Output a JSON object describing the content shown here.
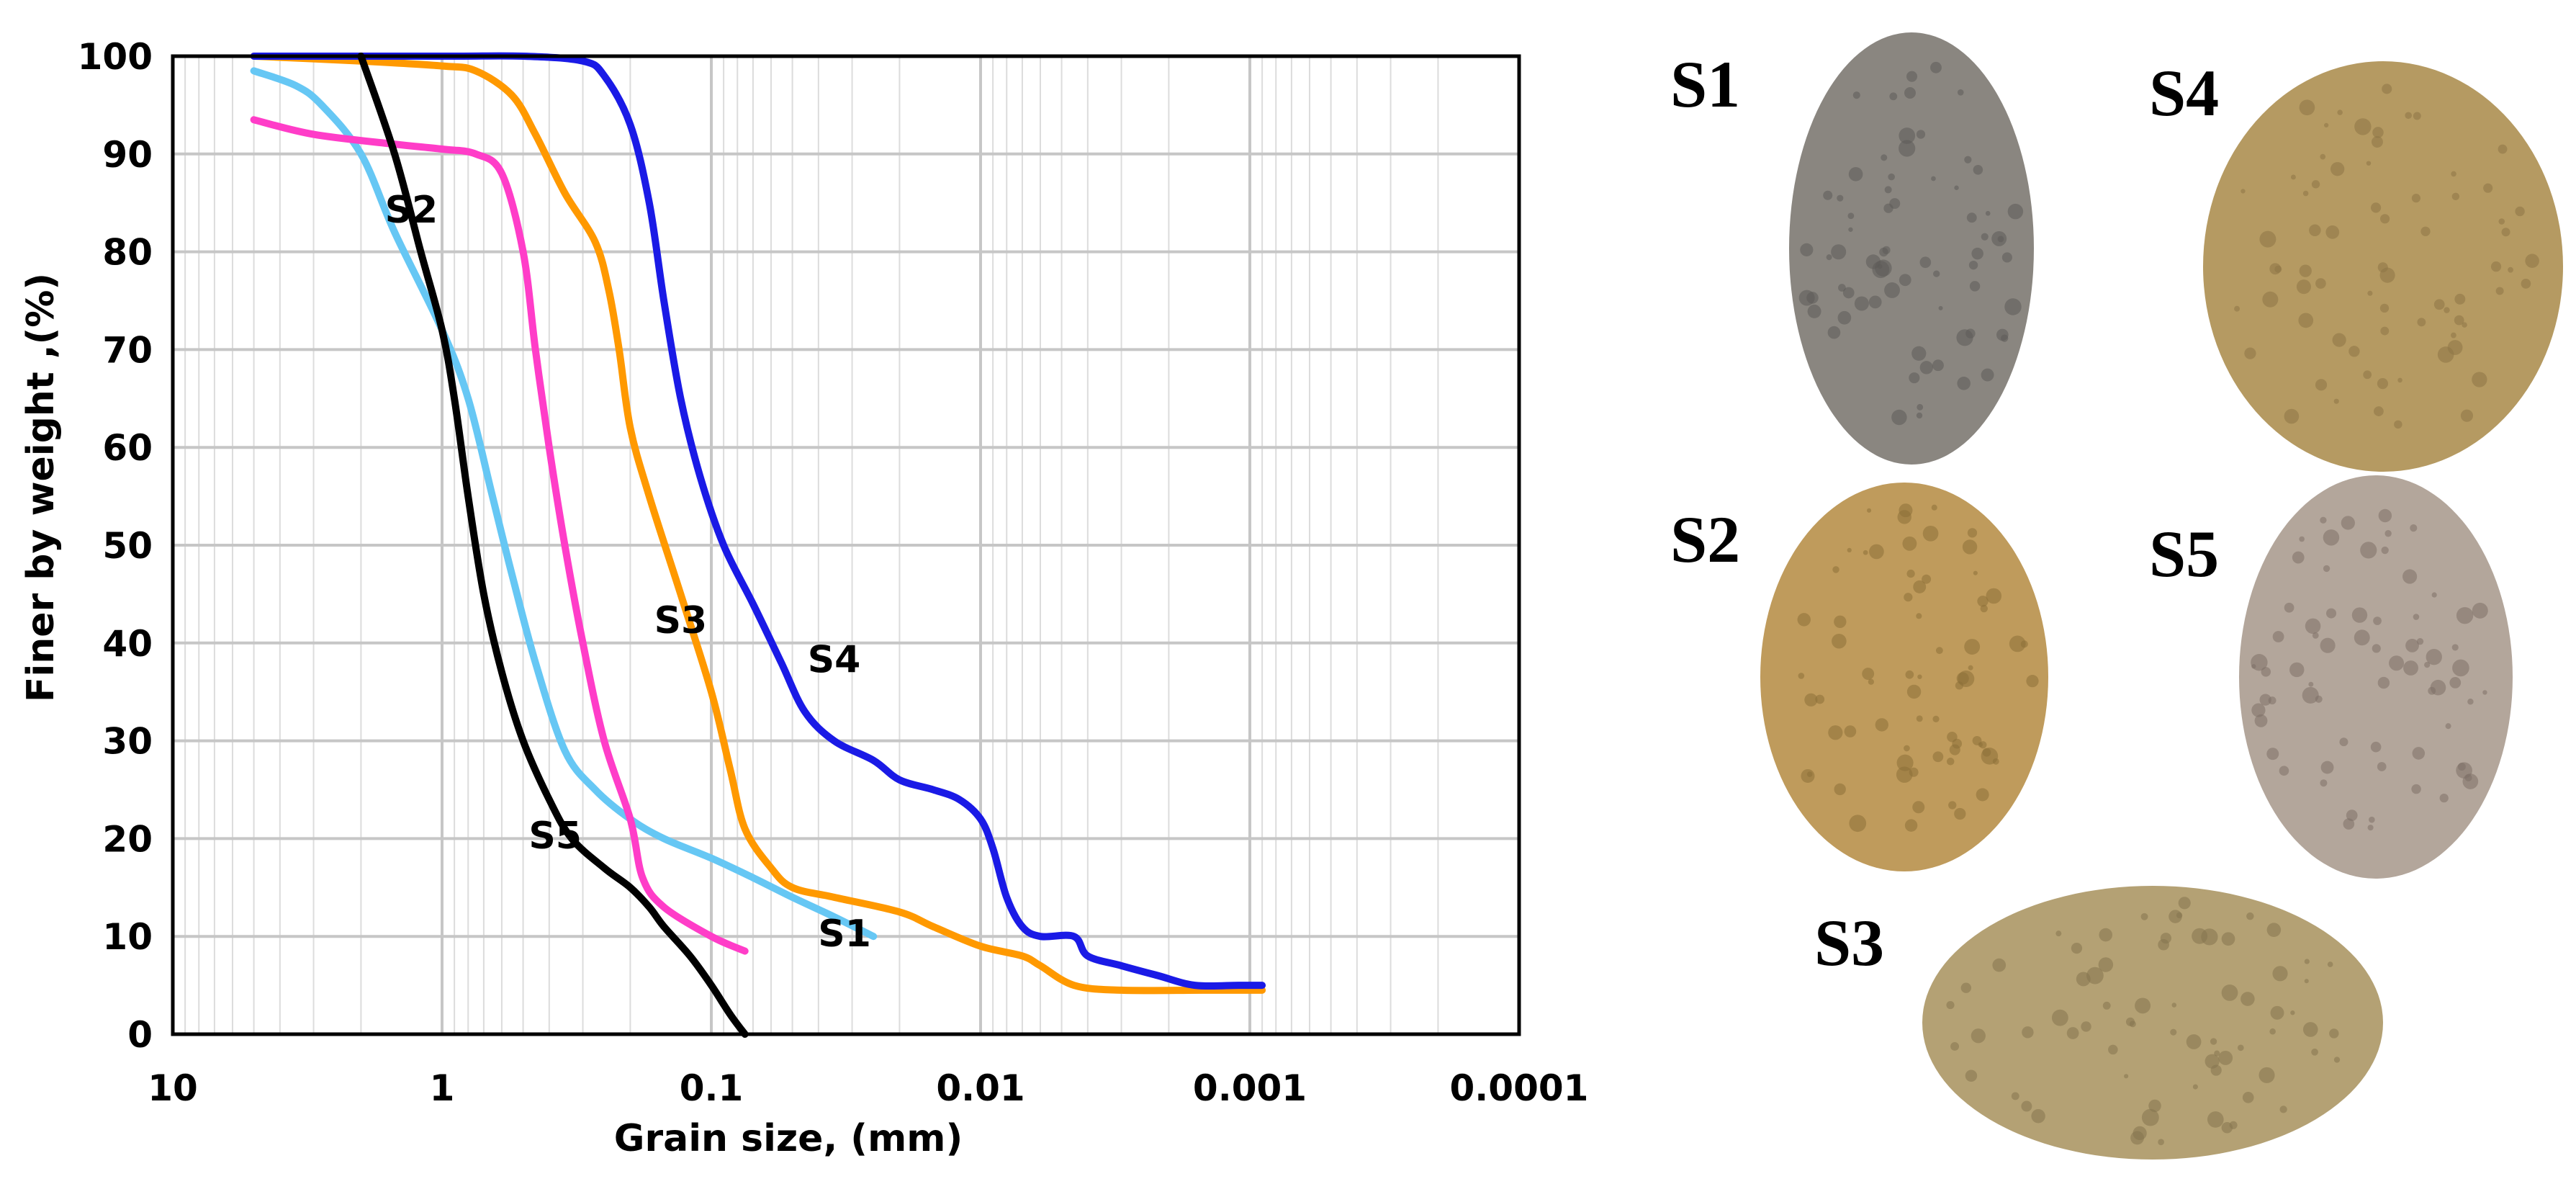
{
  "chart_data": {
    "type": "line",
    "title": "",
    "xlabel": "Grain size, (mm)",
    "ylabel": "Finer by weight ,(%)",
    "x_scale": "log",
    "x_reversed": true,
    "xlim": [
      10,
      0.0001
    ],
    "ylim": [
      0,
      100
    ],
    "x_ticks": [
      10,
      1,
      0.1,
      0.01,
      0.001,
      0.0001
    ],
    "x_tick_labels": [
      "10",
      "1",
      "0.1",
      "0.01",
      "0.001",
      "0.0001"
    ],
    "y_ticks": [
      0,
      10,
      20,
      30,
      40,
      50,
      60,
      70,
      80,
      90,
      100
    ],
    "y_tick_labels": [
      "0",
      "10",
      "20",
      "30",
      "40",
      "50",
      "60",
      "70",
      "80",
      "90",
      "100"
    ],
    "grid": true,
    "series": [
      {
        "name": "S1",
        "color": "#66c7f4",
        "points": [
          [
            5,
            98.5
          ],
          [
            3.5,
            97
          ],
          [
            2.8,
            95
          ],
          [
            2,
            90
          ],
          [
            1.5,
            82
          ],
          [
            1,
            72
          ],
          [
            0.8,
            65
          ],
          [
            0.65,
            55
          ],
          [
            0.55,
            47
          ],
          [
            0.45,
            38
          ],
          [
            0.35,
            29
          ],
          [
            0.27,
            25
          ],
          [
            0.2,
            22
          ],
          [
            0.15,
            20
          ],
          [
            0.1,
            18
          ],
          [
            0.07,
            16
          ],
          [
            0.05,
            14
          ],
          [
            0.035,
            12
          ],
          [
            0.025,
            10
          ]
        ]
      },
      {
        "name": "S2",
        "color": "#ff3dc8",
        "points": [
          [
            5,
            93.5
          ],
          [
            3,
            92
          ],
          [
            1.5,
            91
          ],
          [
            1,
            90.5
          ],
          [
            0.75,
            90
          ],
          [
            0.6,
            88
          ],
          [
            0.5,
            80
          ],
          [
            0.45,
            70
          ],
          [
            0.4,
            60
          ],
          [
            0.35,
            50
          ],
          [
            0.3,
            40
          ],
          [
            0.25,
            30
          ],
          [
            0.2,
            22
          ],
          [
            0.18,
            16
          ],
          [
            0.15,
            13
          ],
          [
            0.1,
            10
          ],
          [
            0.075,
            8.5
          ]
        ]
      },
      {
        "name": "S3",
        "color": "#ff9900",
        "points": [
          [
            5,
            100
          ],
          [
            2,
            99.5
          ],
          [
            1,
            99
          ],
          [
            0.75,
            98.5
          ],
          [
            0.55,
            96
          ],
          [
            0.45,
            92
          ],
          [
            0.35,
            86
          ],
          [
            0.27,
            81
          ],
          [
            0.24,
            76
          ],
          [
            0.22,
            70
          ],
          [
            0.2,
            62
          ],
          [
            0.17,
            55
          ],
          [
            0.13,
            45
          ],
          [
            0.1,
            35
          ],
          [
            0.085,
            27
          ],
          [
            0.075,
            21
          ],
          [
            0.06,
            17
          ],
          [
            0.05,
            15
          ],
          [
            0.035,
            14
          ],
          [
            0.02,
            12.5
          ],
          [
            0.015,
            11
          ],
          [
            0.01,
            9
          ],
          [
            0.007,
            8
          ],
          [
            0.006,
            7
          ],
          [
            0.0045,
            5
          ],
          [
            0.003,
            4.5
          ],
          [
            0.0015,
            4.5
          ],
          [
            0.0009,
            4.5
          ]
        ]
      },
      {
        "name": "S4",
        "color": "#1a1ae6",
        "points": [
          [
            5,
            100
          ],
          [
            1,
            100
          ],
          [
            0.5,
            100
          ],
          [
            0.3,
            99.5
          ],
          [
            0.25,
            98
          ],
          [
            0.2,
            93
          ],
          [
            0.17,
            85
          ],
          [
            0.15,
            75
          ],
          [
            0.13,
            65
          ],
          [
            0.11,
            57
          ],
          [
            0.09,
            50
          ],
          [
            0.07,
            44
          ],
          [
            0.055,
            38
          ],
          [
            0.045,
            33
          ],
          [
            0.035,
            30
          ],
          [
            0.025,
            28
          ],
          [
            0.02,
            26
          ],
          [
            0.015,
            25
          ],
          [
            0.012,
            24
          ],
          [
            0.01,
            22
          ],
          [
            0.009,
            19
          ],
          [
            0.008,
            14
          ],
          [
            0.007,
            11
          ],
          [
            0.006,
            10
          ],
          [
            0.0045,
            10
          ],
          [
            0.004,
            8
          ],
          [
            0.003,
            7
          ],
          [
            0.0022,
            6
          ],
          [
            0.0016,
            5
          ],
          [
            0.0011,
            5
          ],
          [
            0.0009,
            5
          ]
        ]
      },
      {
        "name": "S5",
        "color": "#000000",
        "points": [
          [
            2,
            100
          ],
          [
            1.5,
            90
          ],
          [
            1.2,
            80
          ],
          [
            1,
            72
          ],
          [
            0.9,
            65
          ],
          [
            0.8,
            55
          ],
          [
            0.7,
            45
          ],
          [
            0.6,
            37
          ],
          [
            0.5,
            30
          ],
          [
            0.4,
            24
          ],
          [
            0.33,
            20
          ],
          [
            0.25,
            17
          ],
          [
            0.2,
            15
          ],
          [
            0.17,
            13
          ],
          [
            0.15,
            11
          ],
          [
            0.12,
            8
          ],
          [
            0.1,
            5
          ],
          [
            0.085,
            2
          ],
          [
            0.075,
            0
          ]
        ]
      }
    ],
    "photos": [
      {
        "label": "S1",
        "color": "#8a8680",
        "speck": "#5d5b58"
      },
      {
        "label": "S4",
        "color": "#b59a62",
        "speck": "#8c7545"
      },
      {
        "label": "S2",
        "color": "#bf9b5c",
        "speck": "#8d6f38"
      },
      {
        "label": "S5",
        "color": "#b3a69b",
        "speck": "#7d6f66"
      },
      {
        "label": "S3",
        "color": "#b4a174",
        "speck": "#85744e"
      }
    ]
  }
}
